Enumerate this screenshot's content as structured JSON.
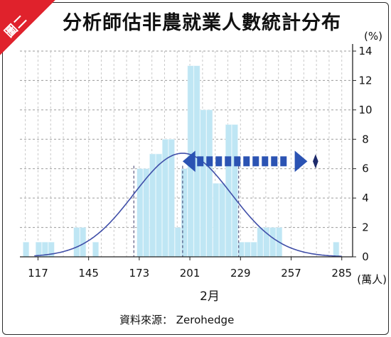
{
  "badge": "圖二",
  "title": "分析師估非農就業人數統計分布",
  "y_unit": "(%)",
  "x_unit": "(萬人)",
  "x_axis_label": "2月",
  "source": "資料來源： Zerohedge",
  "colors": {
    "bar_fill": "#bfe6f4",
    "bar_edge": "#e8f6fb",
    "curve": "#3f4ea8",
    "arrow": "#2b53b3",
    "badge": "#e0222c",
    "grid": "#9a9a9a"
  },
  "chart_data": {
    "type": "bar",
    "xlabel": "2月",
    "ylabel": "(%)",
    "ylim": [
      0,
      14
    ],
    "xlim": [
      107,
      291
    ],
    "yticks": [
      0,
      2,
      4,
      6,
      8,
      10,
      12,
      14
    ],
    "xticks": [
      117,
      145,
      173,
      201,
      229,
      257,
      285
    ],
    "bin_width": 3.5,
    "bins": [
      {
        "x": 110.5,
        "value": 1
      },
      {
        "x": 117.5,
        "value": 1
      },
      {
        "x": 121,
        "value": 1
      },
      {
        "x": 124.5,
        "value": 1
      },
      {
        "x": 138.5,
        "value": 2
      },
      {
        "x": 142,
        "value": 2
      },
      {
        "x": 149,
        "value": 1
      },
      {
        "x": 173.5,
        "value": 6
      },
      {
        "x": 177,
        "value": 6
      },
      {
        "x": 180.5,
        "value": 7
      },
      {
        "x": 184,
        "value": 7
      },
      {
        "x": 187.5,
        "value": 8
      },
      {
        "x": 191,
        "value": 8
      },
      {
        "x": 194.5,
        "value": 2
      },
      {
        "x": 198,
        "value": 6
      },
      {
        "x": 201.5,
        "value": 13
      },
      {
        "x": 205,
        "value": 13
      },
      {
        "x": 208.5,
        "value": 10
      },
      {
        "x": 212,
        "value": 10
      },
      {
        "x": 215.5,
        "value": 5
      },
      {
        "x": 219,
        "value": 5
      },
      {
        "x": 222.5,
        "value": 9
      },
      {
        "x": 226,
        "value": 9
      },
      {
        "x": 229.5,
        "value": 1
      },
      {
        "x": 233,
        "value": 1
      },
      {
        "x": 236.5,
        "value": 1
      },
      {
        "x": 240,
        "value": 2
      },
      {
        "x": 243.5,
        "value": 2
      },
      {
        "x": 247,
        "value": 2
      },
      {
        "x": 250.5,
        "value": 2
      },
      {
        "x": 282,
        "value": 1
      }
    ],
    "normal_curve": {
      "mean": 197,
      "peak": 7.05,
      "sigma": 27
    },
    "reference_lines": [
      170,
      197,
      228
    ],
    "grid": true
  }
}
